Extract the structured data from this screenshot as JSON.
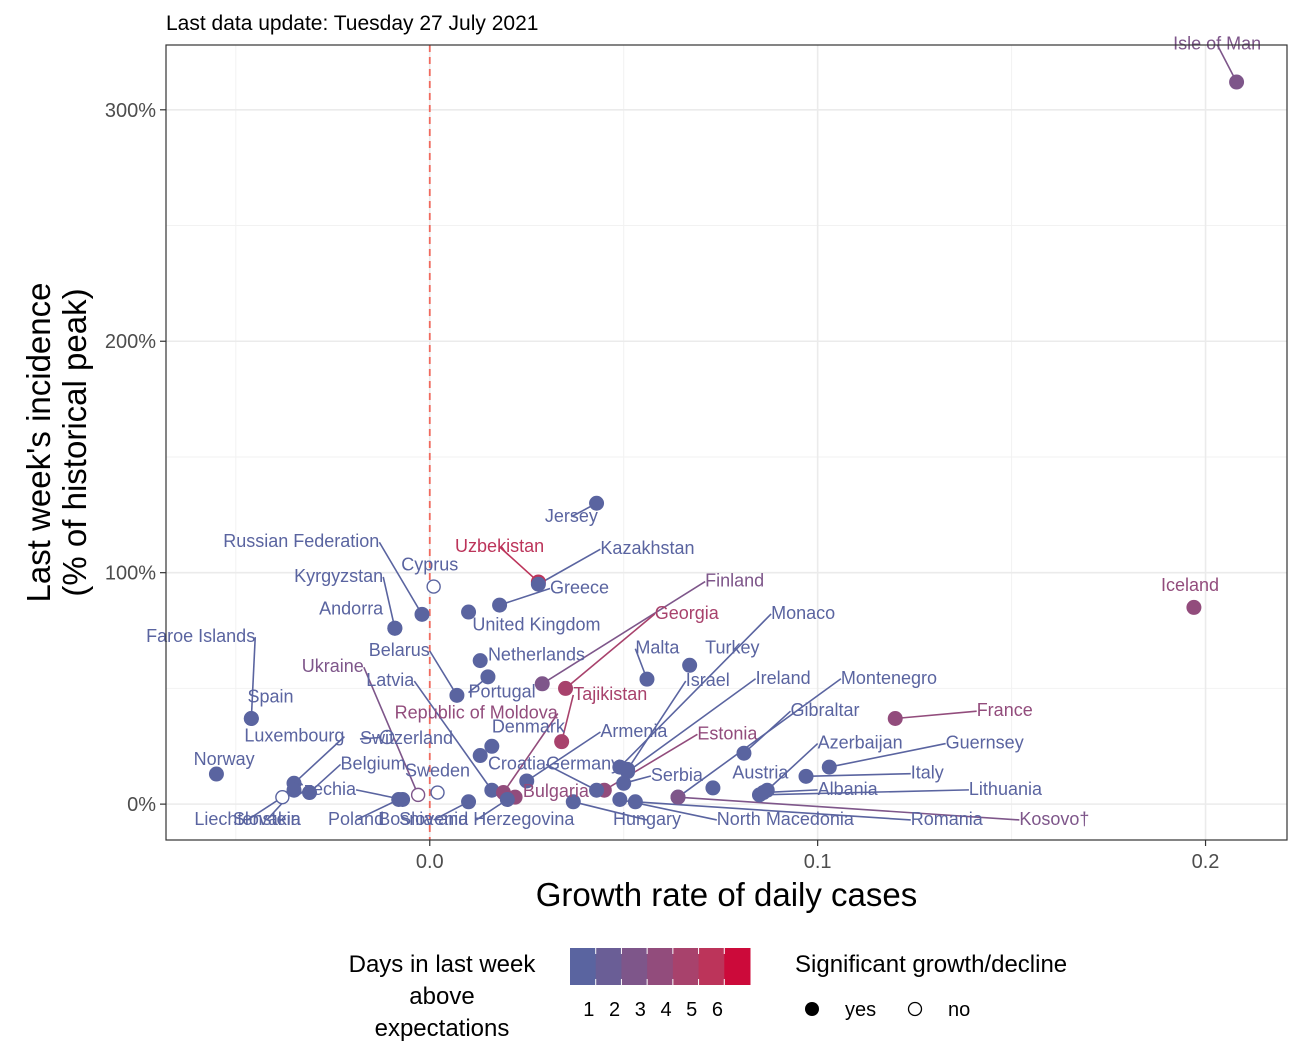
{
  "subtitle": "Last data update: Tuesday 27 July 2021",
  "chart_data": {
    "type": "scatter",
    "xlabel": "Growth rate of daily cases",
    "ylabel_lines": [
      "Last week's incidence",
      "(% of historical peak)"
    ],
    "xlim": [
      -0.068,
      0.221
    ],
    "ylim": [
      -0.155,
      3.28
    ],
    "x_ticks": [
      {
        "value": 0.0,
        "label": "0.0"
      },
      {
        "value": 0.1,
        "label": "0.1"
      },
      {
        "value": 0.2,
        "label": "0.2"
      }
    ],
    "y_ticks": [
      {
        "value": 0,
        "label": "0%"
      },
      {
        "value": 1,
        "label": "100%"
      },
      {
        "value": 2,
        "label": "200%"
      },
      {
        "value": 3,
        "label": "300%"
      }
    ],
    "reference_line": {
      "x": 0,
      "color": "#f06a5e",
      "dashed": true
    },
    "grid": true,
    "color_scale": {
      "title_lines": [
        "Days in last week",
        "above",
        "expectations"
      ],
      "colors": [
        "#5a64a0",
        "#6a5e96",
        "#7e568a",
        "#924c7c",
        "#a8426c",
        "#bc345a",
        "#cc0a3a"
      ],
      "tick_labels": [
        "1",
        "2",
        "3",
        "4",
        "5",
        "6"
      ]
    },
    "shape_legend": {
      "title": "Significant growth/decline",
      "items": [
        {
          "label": "yes",
          "filled": true
        },
        {
          "label": "no",
          "filled": false
        }
      ]
    },
    "points": [
      {
        "name": "Isle of Man",
        "x": 0.208,
        "y": 3.12,
        "days": 3,
        "sig": true,
        "lx": 0.203,
        "ly": 3.26,
        "anchor": "middle"
      },
      {
        "name": "Iceland",
        "x": 0.197,
        "y": 0.85,
        "days": 4,
        "sig": true,
        "lx": 0.196,
        "ly": 0.92,
        "anchor": "middle"
      },
      {
        "name": "Jersey",
        "x": 0.043,
        "y": 1.3,
        "days": 1,
        "sig": true,
        "lx": 0.0365,
        "ly": 1.22,
        "anchor": "middle"
      },
      {
        "name": "Russian Federation",
        "x": -0.002,
        "y": 0.82,
        "days": 1,
        "sig": true,
        "lx": -0.013,
        "ly": 1.11,
        "anchor": "end"
      },
      {
        "name": "Cyprus",
        "x": 0.001,
        "y": 0.94,
        "days": 1,
        "sig": false,
        "lx": 0.0,
        "ly": 1.01,
        "anchor": "middle"
      },
      {
        "name": "Uzbekistan",
        "x": 0.028,
        "y": 0.96,
        "days": 6,
        "sig": true,
        "lx": 0.018,
        "ly": 1.09,
        "anchor": "middle"
      },
      {
        "name": "Kazakhstan",
        "x": 0.028,
        "y": 0.95,
        "days": 1,
        "sig": true,
        "lx": 0.044,
        "ly": 1.08,
        "anchor": "start"
      },
      {
        "name": "Kyrgyzstan",
        "x": -0.009,
        "y": 0.76,
        "days": 1,
        "sig": true,
        "lx": -0.012,
        "ly": 0.96,
        "anchor": "end"
      },
      {
        "name": "Greece",
        "x": 0.018,
        "y": 0.86,
        "days": 1,
        "sig": true,
        "lx": 0.031,
        "ly": 0.91,
        "anchor": "start"
      },
      {
        "name": "Andorra",
        "x": -0.009,
        "y": 0.76,
        "days": 1,
        "sig": true,
        "lx": -0.012,
        "ly": 0.82,
        "anchor": "end"
      },
      {
        "name": "United Kingdom",
        "x": 0.01,
        "y": 0.83,
        "days": 1,
        "sig": true,
        "lx": 0.011,
        "ly": 0.75,
        "anchor": "start"
      },
      {
        "name": "Finland",
        "x": 0.029,
        "y": 0.52,
        "days": 3,
        "sig": true,
        "lx": 0.071,
        "ly": 0.94,
        "anchor": "start"
      },
      {
        "name": "Georgia",
        "x": 0.035,
        "y": 0.5,
        "days": 5,
        "sig": true,
        "lx": 0.058,
        "ly": 0.8,
        "anchor": "start"
      },
      {
        "name": "Monaco",
        "x": 0.049,
        "y": 0.16,
        "days": 1,
        "sig": true,
        "lx": 0.088,
        "ly": 0.8,
        "anchor": "start"
      },
      {
        "name": "Faroe Islands",
        "x": -0.046,
        "y": 0.37,
        "days": 1,
        "sig": true,
        "lx": -0.045,
        "ly": 0.7,
        "anchor": "end"
      },
      {
        "name": "Belarus",
        "x": 0.007,
        "y": 0.47,
        "days": 1,
        "sig": true,
        "lx": 0.0,
        "ly": 0.64,
        "anchor": "end"
      },
      {
        "name": "Netherlands",
        "x": 0.013,
        "y": 0.62,
        "days": 1,
        "sig": true,
        "lx": 0.015,
        "ly": 0.62,
        "anchor": "start"
      },
      {
        "name": "Malta",
        "x": 0.056,
        "y": 0.54,
        "days": 1,
        "sig": true,
        "lx": 0.053,
        "ly": 0.65,
        "anchor": "start"
      },
      {
        "name": "Turkey",
        "x": 0.067,
        "y": 0.6,
        "days": 1,
        "sig": true,
        "lx": 0.071,
        "ly": 0.65,
        "anchor": "start"
      },
      {
        "name": "Ukraine",
        "x": -0.003,
        "y": 0.04,
        "days": 3,
        "sig": false,
        "lx": -0.017,
        "ly": 0.57,
        "anchor": "end"
      },
      {
        "name": "Latvia",
        "x": 0.016,
        "y": 0.06,
        "days": 1,
        "sig": true,
        "lx": -0.004,
        "ly": 0.51,
        "anchor": "end"
      },
      {
        "name": "Portugal",
        "x": 0.015,
        "y": 0.55,
        "days": 1,
        "sig": true,
        "lx": 0.01,
        "ly": 0.46,
        "anchor": "start"
      },
      {
        "name": "Israel",
        "x": 0.051,
        "y": 0.15,
        "days": 1,
        "sig": true,
        "lx": 0.066,
        "ly": 0.51,
        "anchor": "start"
      },
      {
        "name": "Ireland",
        "x": 0.051,
        "y": 0.14,
        "days": 1,
        "sig": true,
        "lx": 0.084,
        "ly": 0.52,
        "anchor": "start"
      },
      {
        "name": "Montenegro",
        "x": 0.064,
        "y": 0.03,
        "days": 1,
        "sig": true,
        "lx": 0.106,
        "ly": 0.52,
        "anchor": "start"
      },
      {
        "name": "Spain",
        "x": -0.046,
        "y": 0.37,
        "days": 1,
        "sig": true,
        "lx": -0.047,
        "ly": 0.44,
        "anchor": "start"
      },
      {
        "name": "Tajikistan",
        "x": 0.034,
        "y": 0.27,
        "days": 5,
        "sig": true,
        "lx": 0.037,
        "ly": 0.45,
        "anchor": "start"
      },
      {
        "name": "Republic of Moldova",
        "x": 0.019,
        "y": 0.05,
        "days": 4,
        "sig": true,
        "lx": 0.033,
        "ly": 0.37,
        "anchor": "end"
      },
      {
        "name": "Gibraltar",
        "x": 0.081,
        "y": 0.22,
        "days": 1,
        "sig": true,
        "lx": 0.093,
        "ly": 0.38,
        "anchor": "start"
      },
      {
        "name": "France",
        "x": 0.12,
        "y": 0.37,
        "days": 4,
        "sig": true,
        "lx": 0.141,
        "ly": 0.38,
        "anchor": "start"
      },
      {
        "name": "Denmark",
        "x": 0.016,
        "y": 0.25,
        "days": 1,
        "sig": true,
        "lx": 0.016,
        "ly": 0.31,
        "anchor": "start"
      },
      {
        "name": "Armenia",
        "x": 0.025,
        "y": 0.1,
        "days": 1,
        "sig": true,
        "lx": 0.044,
        "ly": 0.29,
        "anchor": "start"
      },
      {
        "name": "Switzerland",
        "x": -0.011,
        "y": 0.29,
        "days": 1,
        "sig": false,
        "lx": -0.018,
        "ly": 0.26,
        "anchor": "start"
      },
      {
        "name": "Estonia",
        "x": 0.045,
        "y": 0.06,
        "days": 4,
        "sig": true,
        "lx": 0.069,
        "ly": 0.28,
        "anchor": "start"
      },
      {
        "name": "Azerbaijan",
        "x": 0.087,
        "y": 0.06,
        "days": 1,
        "sig": true,
        "lx": 0.1,
        "ly": 0.24,
        "anchor": "start"
      },
      {
        "name": "Guernsey",
        "x": 0.103,
        "y": 0.16,
        "days": 1,
        "sig": true,
        "lx": 0.133,
        "ly": 0.24,
        "anchor": "start"
      },
      {
        "name": "Luxembourg",
        "x": -0.035,
        "y": 0.09,
        "days": 1,
        "sig": true,
        "lx": -0.022,
        "ly": 0.27,
        "anchor": "end"
      },
      {
        "name": "Norway",
        "x": -0.055,
        "y": 0.13,
        "days": 1,
        "sig": true,
        "lx": -0.053,
        "ly": 0.17,
        "anchor": "middle"
      },
      {
        "name": "Germany",
        "x": 0.043,
        "y": 0.06,
        "days": 1,
        "sig": true,
        "lx": 0.03,
        "ly": 0.15,
        "anchor": "start"
      },
      {
        "name": "Croatia",
        "x": 0.013,
        "y": 0.21,
        "days": 1,
        "sig": true,
        "lx": 0.015,
        "ly": 0.15,
        "anchor": "start"
      },
      {
        "name": "Serbia",
        "x": 0.05,
        "y": 0.09,
        "days": 1,
        "sig": true,
        "lx": 0.057,
        "ly": 0.1,
        "anchor": "start"
      },
      {
        "name": "Austria",
        "x": 0.073,
        "y": 0.07,
        "days": 1,
        "sig": true,
        "lx": 0.078,
        "ly": 0.11,
        "anchor": "start"
      },
      {
        "name": "Italy",
        "x": 0.097,
        "y": 0.12,
        "days": 1,
        "sig": true,
        "lx": 0.124,
        "ly": 0.11,
        "anchor": "start"
      },
      {
        "name": "Belgium",
        "x": -0.031,
        "y": 0.05,
        "days": 1,
        "sig": true,
        "lx": -0.023,
        "ly": 0.15,
        "anchor": "start"
      },
      {
        "name": "Sweden",
        "x": 0.002,
        "y": 0.05,
        "days": 1,
        "sig": false,
        "lx": 0.002,
        "ly": 0.12,
        "anchor": "middle"
      },
      {
        "name": "Albania",
        "x": 0.086,
        "y": 0.05,
        "days": 1,
        "sig": true,
        "lx": 0.1,
        "ly": 0.04,
        "anchor": "start"
      },
      {
        "name": "Lithuania",
        "x": 0.085,
        "y": 0.04,
        "days": 1,
        "sig": true,
        "lx": 0.139,
        "ly": 0.04,
        "anchor": "start"
      },
      {
        "name": "Czechia",
        "x": -0.007,
        "y": 0.02,
        "days": 1,
        "sig": true,
        "lx": -0.019,
        "ly": 0.04,
        "anchor": "end"
      },
      {
        "name": "Bulgaria",
        "x": 0.022,
        "y": 0.03,
        "days": 4,
        "sig": true,
        "lx": 0.024,
        "ly": 0.03,
        "anchor": "start"
      },
      {
        "name": "Liechtenstein",
        "x": -0.038,
        "y": 0.03,
        "days": 1,
        "sig": false,
        "lx": -0.047,
        "ly": -0.09,
        "anchor": "middle"
      },
      {
        "name": "Slovakia",
        "x": -0.035,
        "y": 0.06,
        "days": 1,
        "sig": true,
        "lx": -0.042,
        "ly": -0.09,
        "anchor": "middle"
      },
      {
        "name": "Poland",
        "x": -0.008,
        "y": 0.02,
        "days": 1,
        "sig": true,
        "lx": -0.019,
        "ly": -0.09,
        "anchor": "middle"
      },
      {
        "name": "Slovenia",
        "x": 0.01,
        "y": 0.01,
        "days": 1,
        "sig": true,
        "lx": 0.001,
        "ly": -0.09,
        "anchor": "middle"
      },
      {
        "name": "Bosnia and Herzegovina",
        "x": 0.02,
        "y": 0.02,
        "days": 1,
        "sig": true,
        "lx": 0.012,
        "ly": -0.09,
        "anchor": "middle"
      },
      {
        "name": "Hungary",
        "x": 0.037,
        "y": 0.01,
        "days": 1,
        "sig": true,
        "lx": 0.056,
        "ly": -0.09,
        "anchor": "middle"
      },
      {
        "name": "North Macedonia",
        "x": 0.049,
        "y": 0.02,
        "days": 1,
        "sig": true,
        "lx": 0.074,
        "ly": -0.09,
        "anchor": "start"
      },
      {
        "name": "Romania",
        "x": 0.053,
        "y": 0.01,
        "days": 1,
        "sig": true,
        "lx": 0.124,
        "ly": -0.09,
        "anchor": "start"
      },
      {
        "name": "Kosovo†",
        "x": 0.064,
        "y": 0.03,
        "days": 3,
        "sig": true,
        "lx": 0.152,
        "ly": -0.09,
        "anchor": "start"
      }
    ]
  }
}
